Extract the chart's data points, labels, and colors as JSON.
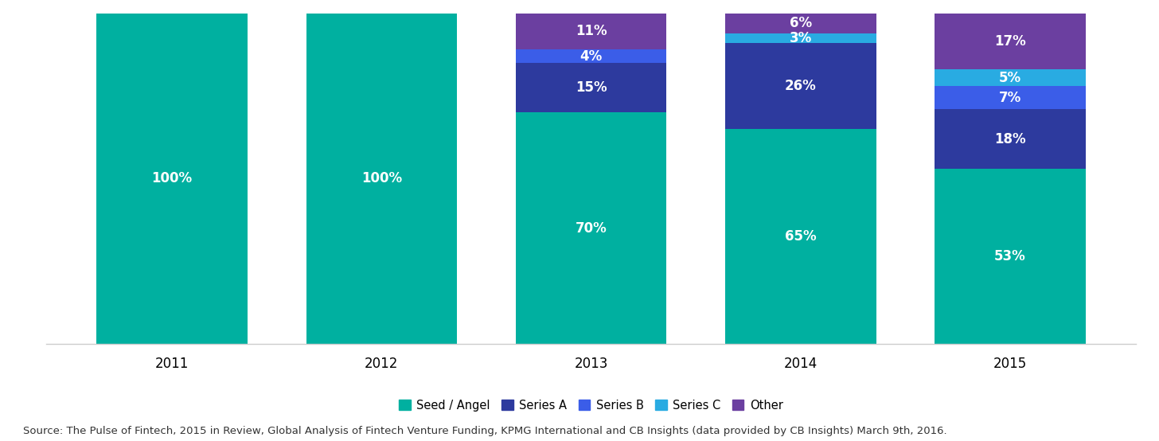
{
  "categories": [
    "2011",
    "2012",
    "2013",
    "2014",
    "2015"
  ],
  "series": {
    "Seed / Angel": [
      100,
      100,
      70,
      65,
      53
    ],
    "Series A": [
      0,
      0,
      15,
      26,
      18
    ],
    "Series B": [
      0,
      0,
      4,
      0,
      7
    ],
    "Series C": [
      0,
      0,
      0,
      3,
      5
    ],
    "Other": [
      0,
      0,
      11,
      6,
      17
    ]
  },
  "colors": {
    "Seed / Angel": "#00b0a0",
    "Series A": "#2d3a9e",
    "Series B": "#3b5de8",
    "Series C": "#29abe2",
    "Other": "#6b3fa0"
  },
  "labels": {
    "Seed / Angel": [
      "100%",
      "100%",
      "70%",
      "65%",
      "53%"
    ],
    "Series A": [
      "",
      "",
      "15%",
      "26%",
      "18%"
    ],
    "Series B": [
      "",
      "",
      "4%",
      "",
      "7%"
    ],
    "Series C": [
      "",
      "",
      "",
      "3%",
      "5%"
    ],
    "Other": [
      "",
      "",
      "11%",
      "6%",
      "17%"
    ]
  },
  "source_text": "Source: The Pulse of Fintech, 2015 in Review, Global Analysis of Fintech Venture Funding, KPMG International and CB Insights (data provided by CB Insights) March 9th, 2016.",
  "bar_width": 0.72,
  "ylim": [
    0,
    100
  ],
  "legend_order": [
    "Seed / Angel",
    "Series A",
    "Series B",
    "Series C",
    "Other"
  ],
  "text_color": "#ffffff",
  "label_fontsize": 12,
  "source_fontsize": 9.5,
  "axis_tick_fontsize": 12
}
